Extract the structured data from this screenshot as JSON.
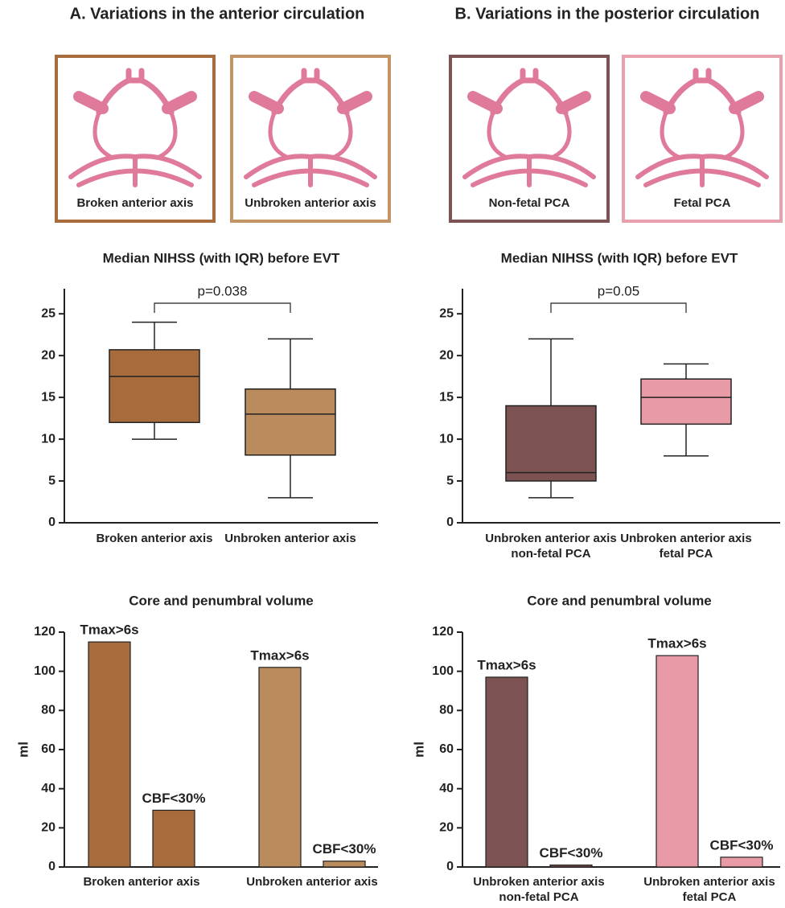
{
  "sections": [
    {
      "title": "A. Variations in the anterior circulation",
      "images": [
        {
          "caption": "Broken anterior axis",
          "color": "#a86c3c"
        },
        {
          "caption": "Unbroken anterior axis",
          "color": "#c29466"
        }
      ]
    },
    {
      "title": "B. Variations in the posterior circulation",
      "images": [
        {
          "caption": "Non-fetal PCA",
          "color": "#7d5253"
        },
        {
          "caption": "Fetal PCA",
          "color": "#e9a0ad"
        }
      ]
    }
  ],
  "chart_data": [
    {
      "type": "box",
      "title": "Median NIHSS (with IQR) before EVT",
      "annotation": "p=0.038",
      "categories": [
        [
          "Broken anterior axis"
        ],
        [
          "Unbroken anterior axis"
        ]
      ],
      "colors": [
        "#a86c3c",
        "#b98b5d"
      ],
      "boxes": [
        {
          "min": 10,
          "q1": 12,
          "median": 17.5,
          "q3": 20.7,
          "max": 24
        },
        {
          "min": 3,
          "q1": 8.1,
          "median": 13,
          "q3": 16,
          "max": 22
        }
      ],
      "ylim": [
        0,
        28
      ],
      "yticks": [
        0,
        5,
        10,
        15,
        20,
        25
      ]
    },
    {
      "type": "box",
      "title": "Median NIHSS (with IQR) before EVT",
      "annotation": "p=0.05",
      "categories": [
        [
          "Unbroken anterior axis",
          "non-fetal PCA"
        ],
        [
          "Unbroken anterior axis",
          "fetal PCA"
        ]
      ],
      "colors": [
        "#7d5253",
        "#e89aa6"
      ],
      "boxes": [
        {
          "min": 3,
          "q1": 5,
          "median": 6,
          "q3": 14,
          "max": 22
        },
        {
          "min": 8,
          "q1": 11.8,
          "median": 15,
          "q3": 17.2,
          "max": 19
        }
      ],
      "ylim": [
        0,
        28
      ],
      "yticks": [
        0,
        5,
        10,
        15,
        20,
        25
      ]
    },
    {
      "type": "bar",
      "title": "Core and penumbral volume",
      "y_label": "ml",
      "categories": [
        [
          "Broken anterior axis"
        ],
        [
          "Unbroken anterior axis"
        ]
      ],
      "colors": [
        "#a86c3c",
        "#b98b5d"
      ],
      "series": [
        {
          "name": "Tmax>6s",
          "values": [
            115,
            102
          ]
        },
        {
          "name": "CBF<30%",
          "values": [
            29,
            3
          ]
        }
      ],
      "ylim": [
        0,
        120
      ],
      "yticks": [
        0,
        20,
        40,
        60,
        80,
        100,
        120
      ]
    },
    {
      "type": "bar",
      "title": "Core and penumbral volume",
      "y_label": "ml",
      "categories": [
        [
          "Unbroken anterior axis",
          "non-fetal PCA"
        ],
        [
          "Unbroken anterior axis",
          "fetal PCA"
        ]
      ],
      "colors": [
        "#7d5253",
        "#e89aa6"
      ],
      "series": [
        {
          "name": "Tmax>6s",
          "values": [
            97,
            108
          ]
        },
        {
          "name": "CBF<30%",
          "values": [
            1,
            5
          ]
        }
      ],
      "ylim": [
        0,
        120
      ],
      "yticks": [
        0,
        20,
        40,
        60,
        80,
        100,
        120
      ]
    }
  ]
}
